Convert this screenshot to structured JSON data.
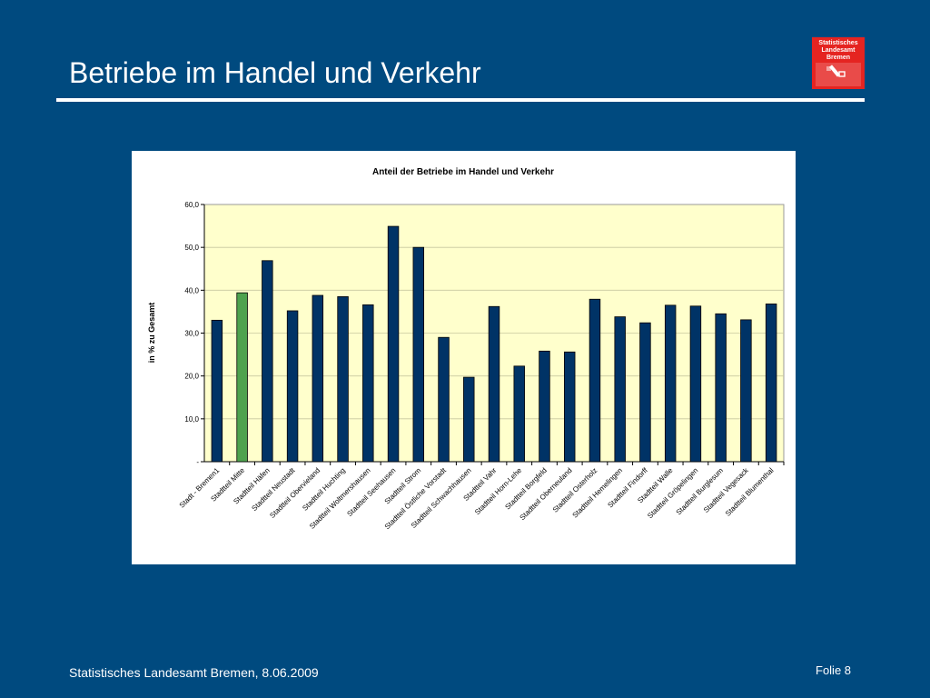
{
  "slide": {
    "title": "Betriebe im Handel und Verkehr",
    "footer_left": "Statistisches Landesamt Bremen, 8.06.2009",
    "footer_right": "Folie 8"
  },
  "logo": {
    "lines": [
      "Statistisches",
      "Landesamt",
      "Bremen"
    ],
    "color": "#e52421",
    "icon": "bremen-key-emblem"
  },
  "colors": {
    "background": "#004a7f",
    "plot_area": "#ffffcc",
    "bar_default": "#003366",
    "bar_highlight": "#4ea24e"
  },
  "chart_data": {
    "type": "bar",
    "title": "Anteil der Betriebe im Handel und Verkehr",
    "ylabel": "in % zu Gesamt",
    "xlabel": "",
    "ylim": [
      0,
      60
    ],
    "yticks": [
      "-",
      "10,0",
      "20,0",
      "30,0",
      "40,0",
      "50,0",
      "60,0"
    ],
    "grid": true,
    "highlight_index": 1,
    "categories": [
      "Stadt - Bremen1",
      "Stadtteil Mitte",
      "Stadtteil Häfen",
      "Stadtteil Neustadt",
      "Stadtteil Obervieland",
      "Stadtteil Huchting",
      "Stadtteil Woltmershausen",
      "Stadtteil Seehausen",
      "Stadtteil Strom",
      "Stadtteil Östliche Vorstadt",
      "Stadtteil Schwachhausen",
      "Stadtteil Vahr",
      "Stadtteil Horn-Lehe",
      "Stadtteil Borgfeld",
      "Stadtteil Oberneuland",
      "Stadtteil Osterholz",
      "Stadtteil Hemelingen",
      "Stadtteil Findorff",
      "Stadtteil Walle",
      "Stadtteil Gröpelingen",
      "Stadtteil Burglesum",
      "Stadtteil Vegesack",
      "Stadtteil Blumenthal"
    ],
    "values": [
      33.0,
      39.4,
      46.9,
      35.2,
      38.8,
      38.5,
      36.6,
      54.9,
      50.0,
      29.0,
      19.7,
      36.2,
      22.3,
      25.8,
      25.6,
      37.9,
      33.8,
      32.4,
      36.5,
      36.3,
      34.5,
      33.1,
      36.8
    ]
  }
}
